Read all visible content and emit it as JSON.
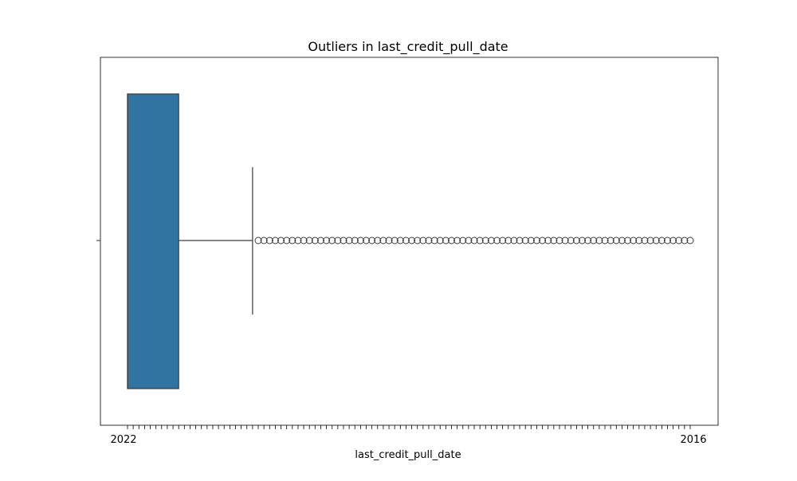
{
  "chart_data": {
    "type": "box",
    "title": "Outliers in last_credit_pull_date",
    "xlabel": "last_credit_pull_date",
    "ylabel": "",
    "orientation": "horizontal",
    "box_color": "#3274a1",
    "x_index_range": [
      0,
      99
    ],
    "box": {
      "min": 0,
      "q1": 0,
      "median": 0,
      "q3": 9,
      "whisker_high": 22
    },
    "outliers": [
      23,
      24,
      25,
      26,
      27,
      28,
      29,
      30,
      31,
      32,
      33,
      34,
      35,
      36,
      37,
      38,
      39,
      40,
      41,
      42,
      43,
      44,
      45,
      46,
      47,
      48,
      49,
      50,
      51,
      52,
      53,
      54,
      55,
      56,
      57,
      58,
      59,
      60,
      61,
      62,
      63,
      64,
      65,
      66,
      67,
      68,
      69,
      70,
      71,
      72,
      73,
      74,
      75,
      76,
      77,
      78,
      79,
      80,
      81,
      82,
      83,
      84,
      85,
      86,
      87,
      88,
      89,
      90,
      91,
      92,
      93,
      94,
      95,
      96,
      97,
      98,
      99
    ],
    "x_tick_labels_legible": [
      "2022",
      "2016"
    ],
    "grid": false,
    "legend": "none"
  }
}
